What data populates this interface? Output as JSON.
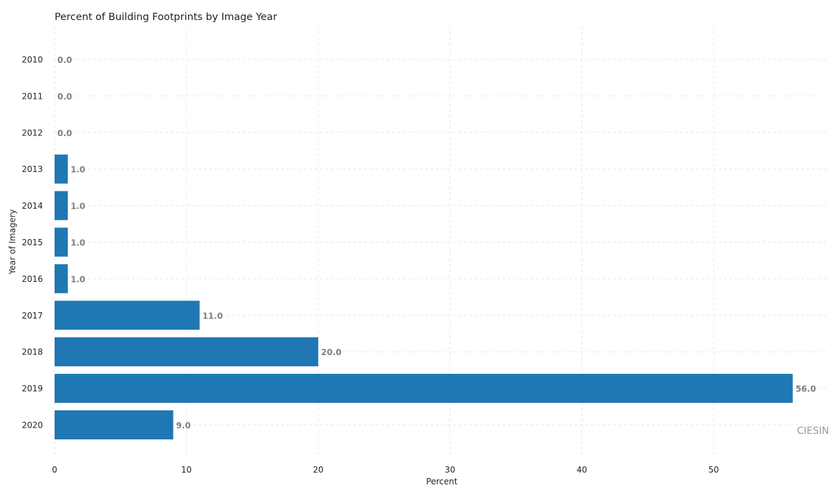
{
  "chart_data": {
    "type": "bar",
    "orientation": "horizontal",
    "title": "Percent of Building Footprints by Image Year",
    "xlabel": "Percent",
    "ylabel": "Year of Imagery",
    "categories": [
      "2010",
      "2011",
      "2012",
      "2013",
      "2014",
      "2015",
      "2016",
      "2017",
      "2018",
      "2019",
      "2020"
    ],
    "values": [
      0.0,
      0.0,
      0.0,
      1.0,
      1.0,
      1.0,
      1.0,
      11.0,
      20.0,
      56.0,
      9.0
    ],
    "data_labels": [
      "0.0",
      "0.0",
      "0.0",
      "1.0",
      "1.0",
      "1.0",
      "1.0",
      "11.0",
      "20.0",
      "56.0",
      "9.0"
    ],
    "xlim": [
      0,
      58.75
    ],
    "xticks": [
      0,
      10,
      20,
      30,
      40,
      50
    ],
    "grid": true,
    "bar_color": "#1f77b4",
    "label_color": "#808080"
  },
  "watermark": "CIESIN"
}
